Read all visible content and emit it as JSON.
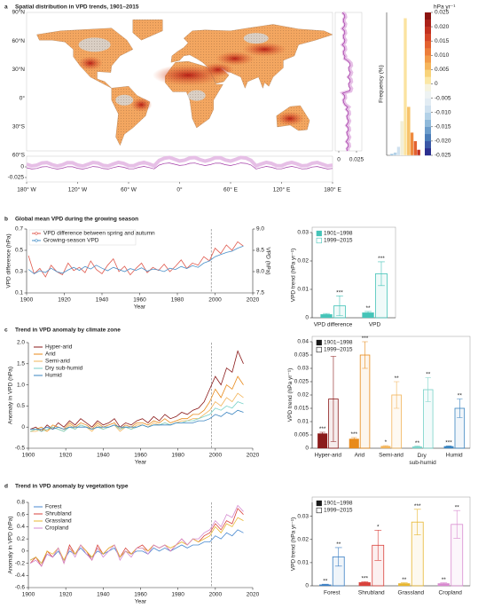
{
  "chart_data": [
    {
      "type": "map",
      "panel": "a",
      "title": "Spatial distribution in VPD trends, 1901–2015",
      "lat_labels": [
        "90°N",
        "60°N",
        "30°N",
        "0°",
        "30°S",
        "60°S"
      ],
      "lon_labels": [
        "180° W",
        "120° W",
        "60° W",
        "0°",
        "60° E",
        "120° E",
        "180° E"
      ],
      "side_xticks": [
        0,
        0.025
      ],
      "bottom_yticks": [
        0,
        -0.025
      ]
    },
    {
      "type": "histogram",
      "ylabel": "Frequency (%)",
      "bins": [
        -0.0075,
        -0.005,
        -0.0025,
        0,
        0.0025,
        0.005,
        0.0075,
        0.01,
        0.0125,
        0.015
      ],
      "counts": [
        0.5,
        1,
        3,
        12,
        48,
        17,
        8,
        5,
        2
      ],
      "colors": [
        "#8fb9da",
        "#b3d1e7",
        "#cfe1ef",
        "#f1eed8",
        "#fbe3a0",
        "#f7c36b",
        "#ef8a3e",
        "#e3612f",
        "#c3311f"
      ],
      "ylim": [
        0,
        50
      ],
      "colorbar": {
        "label": "hPa yr⁻¹",
        "lim": [
          -0.025,
          0.025
        ],
        "colors": [
          "#2b2f8f",
          "#3a57a6",
          "#4a7cb8",
          "#6c9dcb",
          "#8fb9da",
          "#b3d1e7",
          "#cfe1ef",
          "#e2ecf3",
          "#eef3f3",
          "#f6f3df",
          "#fbe7a5",
          "#f8d37a",
          "#f5b55c",
          "#f29a48",
          "#ec7d3a",
          "#e3612f",
          "#d54627",
          "#c3311f",
          "#ab2119",
          "#8b1410"
        ],
        "ticks": [
          0.025,
          {
            "value": 0.02,
            "label": "0.020"
          },
          0.015,
          {
            "value": 0.01,
            "label": "0.010"
          },
          0.005,
          0,
          -0.005,
          {
            "value": -0.01,
            "label": "-0.010"
          },
          -0.015,
          {
            "value": -0.02,
            "label": "-0.020"
          },
          -0.025
        ]
      }
    },
    {
      "type": "line",
      "panel": "b",
      "title": "Global mean VPD during the growing season",
      "xlabel": "Year",
      "ylabel": "VPD difference (hPa)",
      "y2label": "VPD (hPa)",
      "x": [
        1901,
        1904,
        1907,
        1910,
        1913,
        1916,
        1919,
        1922,
        1925,
        1928,
        1931,
        1934,
        1937,
        1940,
        1943,
        1946,
        1949,
        1952,
        1955,
        1958,
        1961,
        1964,
        1967,
        1970,
        1973,
        1976,
        1979,
        1982,
        1985,
        1988,
        1991,
        1994,
        1997,
        2000,
        2003,
        2006,
        2009,
        2012,
        2015
      ],
      "xlim": [
        1900,
        2020
      ],
      "xticks": [
        1900,
        1920,
        1940,
        1960,
        1980,
        2000,
        2020
      ],
      "ylim": [
        0.1,
        0.7
      ],
      "yticks": [
        0.1,
        0.3,
        0.5,
        0.7
      ],
      "y2lim": [
        7.5,
        9.0
      ],
      "y2ticks": [
        7.5,
        {
          "value": 8,
          "label": "8.0"
        },
        8.5,
        {
          "value": 9,
          "label": "9.0"
        }
      ],
      "vline": 1998,
      "series": [
        {
          "name": "VPD difference between spring and autumn",
          "color": "#e05a4e",
          "values": [
            0.45,
            0.28,
            0.33,
            0.25,
            0.36,
            0.3,
            0.27,
            0.38,
            0.31,
            0.34,
            0.29,
            0.4,
            0.32,
            0.28,
            0.36,
            0.42,
            0.3,
            0.35,
            0.27,
            0.33,
            0.38,
            0.29,
            0.34,
            0.31,
            0.37,
            0.3,
            0.35,
            0.41,
            0.33,
            0.38,
            0.36,
            0.44,
            0.4,
            0.52,
            0.47,
            0.55,
            0.5,
            0.58,
            0.54
          ]
        },
        {
          "name": "Growing-season VPD",
          "color": "#4a90c8",
          "axis": "y2",
          "values": [
            8.05,
            7.95,
            8.02,
            7.98,
            8.08,
            8.0,
            7.96,
            8.04,
            8.1,
            8.03,
            8.12,
            8.06,
            8.15,
            8.08,
            8.02,
            8.1,
            8.05,
            8.0,
            8.07,
            8.03,
            8.09,
            8.01,
            8.06,
            8.04,
            8.0,
            8.08,
            8.05,
            8.12,
            8.07,
            8.14,
            8.1,
            8.2,
            8.25,
            8.35,
            8.4,
            8.45,
            8.48,
            8.55,
            8.6
          ]
        }
      ]
    },
    {
      "type": "bar",
      "ylabel": "VPD trend (hPa yr⁻¹)",
      "categories": [
        "VPD difference",
        "VPD"
      ],
      "colors": [
        "#45c4b8",
        "#45c4b8"
      ],
      "ylim": [
        0,
        0.03
      ],
      "yticks": [
        0,
        0.01,
        0.02,
        0.03
      ],
      "series": [
        {
          "name": "1901–1998",
          "color": "#45c4b8",
          "style": "filled",
          "values": [
            0.0012,
            0.0018
          ],
          "errors": [
            0.0003,
            0.0004
          ],
          "annotations": [
            null,
            "**"
          ]
        },
        {
          "name": "1999–2015",
          "color": "#45c4b8",
          "style": "open",
          "values": [
            0.0042,
            0.0155
          ],
          "errors": [
            0.0035,
            0.0042
          ],
          "annotations": [
            "***",
            "***"
          ]
        }
      ]
    },
    {
      "type": "line",
      "panel": "c",
      "title": "Trend in VPD anomaly by climate zone",
      "xlabel": "Year",
      "ylabel": "Anomaly in VPD (hPa)",
      "x": [
        1901,
        1904,
        1907,
        1910,
        1913,
        1916,
        1919,
        1922,
        1925,
        1928,
        1931,
        1934,
        1937,
        1940,
        1943,
        1946,
        1949,
        1952,
        1955,
        1958,
        1961,
        1964,
        1967,
        1970,
        1973,
        1976,
        1979,
        1982,
        1985,
        1988,
        1991,
        1994,
        1997,
        2000,
        2003,
        2006,
        2009,
        2012,
        2015
      ],
      "xlim": [
        1900,
        2020
      ],
      "xticks": [
        1900,
        1920,
        1940,
        1960,
        1980,
        2000,
        2020
      ],
      "ylim": [
        -0.5,
        2.0
      ],
      "yticks": [
        -0.5,
        0,
        0.5,
        {
          "value": 1,
          "label": "1.0"
        },
        1.5,
        {
          "value": 2,
          "label": "2.0"
        }
      ],
      "vline": 1998,
      "series": [
        {
          "name": "Hyper-arid",
          "color": "#8b1a1a",
          "values": [
            -0.05,
            0,
            -0.1,
            0.05,
            -0.05,
            0.1,
            0,
            0.15,
            0.05,
            0.2,
            0.1,
            0,
            0.15,
            0.05,
            0.1,
            0.2,
            0,
            0.1,
            0.05,
            0.15,
            0.2,
            0.1,
            0.25,
            0.15,
            0.3,
            0.2,
            0.25,
            0.35,
            0.3,
            0.4,
            0.45,
            0.6,
            0.9,
            1.2,
            1.0,
            1.4,
            1.3,
            1.8,
            1.5
          ]
        },
        {
          "name": "Arid",
          "color": "#e88a1a",
          "values": [
            -0.1,
            -0.05,
            0,
            -0.1,
            0.05,
            0,
            -0.05,
            0.1,
            0,
            0.1,
            0.05,
            -0.05,
            0.1,
            0,
            0.05,
            0.1,
            -0.05,
            0.05,
            0,
            0.1,
            0.1,
            0.05,
            0.15,
            0.1,
            0.2,
            0.1,
            0.15,
            0.2,
            0.2,
            0.3,
            0.3,
            0.4,
            0.6,
            0.9,
            0.7,
            1.0,
            0.9,
            1.2,
            1.0
          ]
        },
        {
          "name": "Semi-arid",
          "color": "#f2b45a",
          "values": [
            -0.1,
            -0.1,
            -0.05,
            -0.1,
            0,
            -0.05,
            -0.1,
            0.05,
            -0.05,
            0.05,
            0,
            -0.1,
            0.05,
            -0.05,
            0,
            0.05,
            -0.1,
            0,
            -0.05,
            0.05,
            0.05,
            0,
            0.1,
            0.05,
            0.1,
            0.05,
            0.1,
            0.15,
            0.15,
            0.2,
            0.2,
            0.3,
            0.4,
            0.6,
            0.5,
            0.7,
            0.6,
            0.8,
            0.7
          ]
        },
        {
          "name": "Dry sub-humid",
          "color": "#78d2c8",
          "values": [
            -0.1,
            -0.05,
            -0.1,
            -0.05,
            0,
            -0.05,
            -0.1,
            0,
            -0.05,
            0.05,
            0,
            -0.05,
            0,
            -0.05,
            0,
            0.05,
            -0.05,
            0,
            -0.05,
            0,
            0.05,
            0,
            0.05,
            0.05,
            0.1,
            0.05,
            0.1,
            0.1,
            0.15,
            0.15,
            0.2,
            0.25,
            0.3,
            0.45,
            0.4,
            0.5,
            0.45,
            0.6,
            0.55
          ]
        },
        {
          "name": "Humid",
          "color": "#3a84c0",
          "values": [
            -0.05,
            -0.05,
            -0.05,
            0,
            -0.05,
            0,
            -0.05,
            0,
            0,
            0,
            0,
            -0.05,
            0,
            0,
            0,
            0.05,
            0,
            0,
            0,
            0,
            0.05,
            0,
            0.05,
            0.05,
            0.05,
            0.05,
            0.1,
            0.1,
            0.1,
            0.1,
            0.15,
            0.15,
            0.2,
            0.3,
            0.25,
            0.35,
            0.3,
            0.4,
            0.35
          ]
        }
      ]
    },
    {
      "type": "bar",
      "ylabel": "VPD trend (hPa yr⁻¹)",
      "categories": [
        "Hyper-arid",
        "Arid",
        "Semi-arid",
        "Dry sub-humid",
        "Humid"
      ],
      "colors": [
        "#8b1a1a",
        "#e88a1a",
        "#f2b45a",
        "#78d2c8",
        "#3a84c0"
      ],
      "ylim": [
        0,
        0.04
      ],
      "yticks": [
        0,
        0.005,
        0.01,
        0.015,
        0.02,
        0.025,
        0.03,
        0.035,
        0.04
      ],
      "series": [
        {
          "name": "1901–1998",
          "color": "#1a1a1a",
          "style": "filled",
          "values": [
            0.0055,
            0.0035,
            0.0008,
            0.0006,
            0.0007
          ],
          "errors": [
            0.0005,
            0.0005,
            0.0002,
            0.0002,
            0.0002
          ],
          "annotations": [
            "***",
            "***",
            "*",
            "**",
            "***"
          ]
        },
        {
          "name": "1999–2015",
          "color": "#1a1a1a",
          "style": "open",
          "values": [
            0.0185,
            0.035,
            0.02,
            0.022,
            0.015
          ],
          "errors": [
            0.016,
            0.005,
            0.005,
            0.0045,
            0.0035
          ],
          "annotations": [
            null,
            "***",
            "**",
            "**",
            "**"
          ]
        }
      ]
    },
    {
      "type": "line",
      "panel": "d",
      "title": "Trend in VPD anomaly by vegetation type",
      "xlabel": "Year",
      "ylabel": "Anomaly in VPD (hPa)",
      "x": [
        1901,
        1904,
        1907,
        1910,
        1913,
        1916,
        1919,
        1922,
        1925,
        1928,
        1931,
        1934,
        1937,
        1940,
        1943,
        1946,
        1949,
        1952,
        1955,
        1958,
        1961,
        1964,
        1967,
        1970,
        1973,
        1976,
        1979,
        1982,
        1985,
        1988,
        1991,
        1994,
        1997,
        2000,
        2003,
        2006,
        2009,
        2012,
        2015
      ],
      "xlim": [
        1900,
        2020
      ],
      "xticks": [
        1900,
        1920,
        1940,
        1960,
        1980,
        2000,
        2020
      ],
      "ylim": [
        -0.6,
        0.8
      ],
      "yticks": [
        -0.6,
        -0.4,
        -0.2,
        0,
        0.2,
        0.4,
        0.6,
        0.8
      ],
      "vline": 1998,
      "series": [
        {
          "name": "Forest",
          "color": "#4a8ad0",
          "values": [
            -0.15,
            -0.1,
            -0.2,
            -0.05,
            -0.1,
            0,
            -0.15,
            0,
            -0.05,
            0.05,
            -0.05,
            -0.1,
            0,
            -0.05,
            0,
            0.05,
            -0.1,
            0,
            -0.05,
            0,
            0,
            -0.05,
            0.05,
            0,
            0.05,
            0,
            0.05,
            0.1,
            0.05,
            0.1,
            0.1,
            0.15,
            0.15,
            0.25,
            0.2,
            0.3,
            0.25,
            0.35,
            0.3
          ]
        },
        {
          "name": "Shrubland",
          "color": "#d8433c",
          "values": [
            -0.2,
            -0.1,
            -0.25,
            0,
            -0.1,
            0.05,
            -0.2,
            0.1,
            -0.05,
            0.1,
            0,
            -0.15,
            0.1,
            -0.05,
            0.05,
            0.1,
            -0.1,
            0.05,
            -0.05,
            0.05,
            0.1,
            0,
            0.1,
            0.05,
            0.1,
            0,
            0.1,
            0.2,
            0.1,
            0.2,
            0.15,
            0.25,
            0.3,
            0.45,
            0.35,
            0.5,
            0.45,
            0.7,
            0.6
          ]
        },
        {
          "name": "Grassland",
          "color": "#e8b730",
          "values": [
            -0.15,
            -0.1,
            -0.2,
            0,
            -0.05,
            0.05,
            -0.15,
            0.05,
            -0.05,
            0.1,
            0,
            -0.1,
            0.05,
            -0.05,
            0.05,
            0.1,
            -0.1,
            0,
            -0.05,
            0.05,
            0.05,
            0,
            0.1,
            0.05,
            0.1,
            0.05,
            0.1,
            0.15,
            0.1,
            0.2,
            0.15,
            0.2,
            0.25,
            0.4,
            0.3,
            0.45,
            0.4,
            0.55,
            0.5
          ]
        },
        {
          "name": "Cropland",
          "color": "#d48ad0",
          "values": [
            -0.2,
            -0.15,
            -0.25,
            -0.05,
            -0.1,
            0.05,
            -0.2,
            0.05,
            -0.1,
            0.1,
            -0.05,
            -0.15,
            0.05,
            -0.1,
            0,
            0.1,
            -0.15,
            0,
            -0.1,
            0.05,
            0.05,
            -0.05,
            0.1,
            0.05,
            0.1,
            0,
            0.1,
            0.2,
            0.1,
            0.2,
            0.2,
            0.3,
            0.35,
            0.5,
            0.4,
            0.6,
            0.55,
            0.75,
            0.65
          ]
        }
      ]
    },
    {
      "type": "bar",
      "ylabel": "VPD trend (hPa yr⁻¹)",
      "categories": [
        "Forest",
        "Shrubland",
        "Grassland",
        "Cropland"
      ],
      "colors": [
        "#3b7fc4",
        "#d9423c",
        "#e8b730",
        "#d98bd0"
      ],
      "ylim": [
        0,
        0.036
      ],
      "yticks": [
        0,
        0.01,
        0.02,
        0.03
      ],
      "series": [
        {
          "name": "1901–1998",
          "color": "#1a1a1a",
          "style": "filled",
          "values": [
            0.0005,
            0.0015,
            0.001,
            0.001
          ],
          "errors": [
            0.0002,
            0.0003,
            0.0003,
            0.0003
          ],
          "annotations": [
            "**",
            "***",
            "**",
            "**"
          ]
        },
        {
          "name": "1999–2015",
          "color": "#1a1a1a",
          "style": "open",
          "values": [
            0.0125,
            0.0175,
            0.0275,
            0.0265
          ],
          "errors": [
            0.004,
            0.0065,
            0.0055,
            0.006
          ],
          "annotations": [
            "**",
            "*",
            "***",
            "**"
          ]
        }
      ]
    }
  ]
}
